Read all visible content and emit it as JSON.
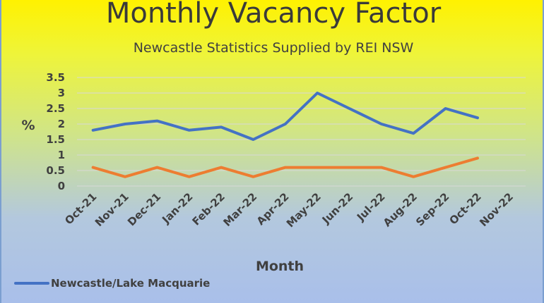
{
  "chart_data": {
    "type": "line",
    "title": "Monthly Vacancy Factor",
    "subtitle": "Newcastle Statistics Supplied by REI NSW",
    "xlabel": "Month",
    "ylabel": "%",
    "categories": [
      "Oct-21",
      "Nov-21",
      "Dec-21",
      "Jan-22",
      "Feb-22",
      "Mar-22",
      "Apr-22",
      "May-22",
      "Jun-22",
      "Jul-22",
      "Aug-22",
      "Sep-22",
      "Oct-22",
      "Nov-22"
    ],
    "yticks": [
      "0",
      "0.5",
      "1",
      "1.5",
      "2",
      "2.5",
      "3",
      "3.5"
    ],
    "ylim": [
      0,
      3.5
    ],
    "grid": true,
    "series": [
      {
        "name": "Newcastle/Lake Macquarie",
        "color": "#4472c4",
        "values": [
          1.8,
          2.0,
          2.1,
          1.8,
          1.9,
          1.5,
          2.0,
          3.0,
          2.5,
          2.0,
          1.7,
          2.5,
          2.2,
          null
        ]
      },
      {
        "color": "#ed7d31",
        "values": [
          0.6,
          0.3,
          0.6,
          0.3,
          0.6,
          0.3,
          0.6,
          0.6,
          0.6,
          0.6,
          0.3,
          0.6,
          0.9,
          null
        ]
      }
    ],
    "legend_position": "bottom-left"
  }
}
